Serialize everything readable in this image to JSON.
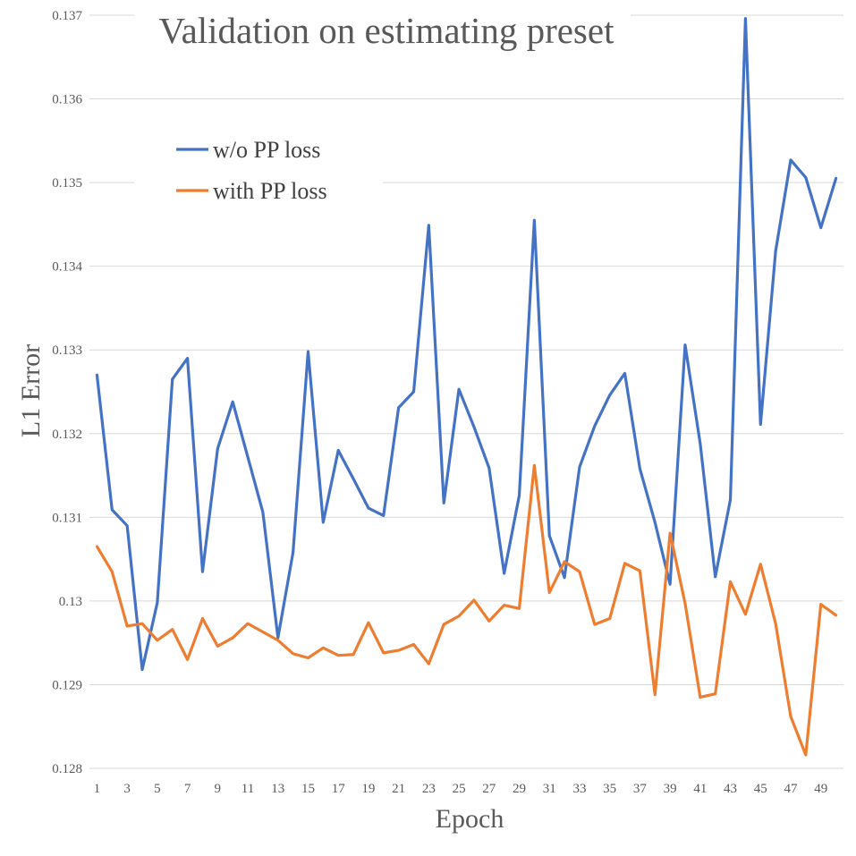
{
  "chart_data": {
    "type": "line",
    "title": "Validation on estimating preset",
    "xlabel": "Epoch",
    "ylabel": "L1 Error",
    "ylim": [
      0.128,
      0.137
    ],
    "yticks": [
      "0.128",
      "0.129",
      "0.13",
      "0.131",
      "0.132",
      "0.133",
      "0.134",
      "0.135",
      "0.136",
      "0.137"
    ],
    "x": [
      1,
      2,
      3,
      4,
      5,
      6,
      7,
      8,
      9,
      10,
      11,
      12,
      13,
      14,
      15,
      16,
      17,
      18,
      19,
      20,
      21,
      22,
      23,
      24,
      25,
      26,
      27,
      28,
      29,
      30,
      31,
      32,
      33,
      34,
      35,
      36,
      37,
      38,
      39,
      40,
      41,
      42,
      43,
      44,
      45,
      46,
      47,
      48,
      49,
      50
    ],
    "xtick_labels": [
      "1",
      "3",
      "5",
      "7",
      "9",
      "11",
      "13",
      "15",
      "17",
      "19",
      "21",
      "23",
      "25",
      "27",
      "29",
      "31",
      "33",
      "35",
      "37",
      "39",
      "41",
      "43",
      "45",
      "47",
      "49"
    ],
    "grid": true,
    "legend_position": "top-left",
    "series": [
      {
        "name": "w/o PP loss",
        "color": "#4472c4",
        "values": [
          0.1327,
          0.13109,
          0.1309,
          0.12918,
          0.12998,
          0.13265,
          0.1329,
          0.13035,
          0.13182,
          0.13238,
          0.13172,
          0.13106,
          0.12956,
          0.13058,
          0.13298,
          0.13094,
          0.1318,
          0.13146,
          0.13111,
          0.13102,
          0.13231,
          0.1325,
          0.13449,
          0.13117,
          0.13253,
          0.13208,
          0.13159,
          0.13033,
          0.13126,
          0.13455,
          0.13078,
          0.13028,
          0.1316,
          0.13209,
          0.13246,
          0.13272,
          0.13158,
          0.13094,
          0.1302,
          0.13306,
          0.13188,
          0.13029,
          0.13121,
          0.13696,
          0.13211,
          0.13418,
          0.13527,
          0.13506,
          0.13446,
          0.13505
        ]
      },
      {
        "name": "with PP loss",
        "color": "#ed7d31",
        "values": [
          0.13065,
          0.13035,
          0.1297,
          0.12973,
          0.12953,
          0.12966,
          0.1293,
          0.12979,
          0.12946,
          0.12956,
          0.12973,
          0.12963,
          0.12953,
          0.12937,
          0.12932,
          0.12944,
          0.12935,
          0.12936,
          0.12974,
          0.12938,
          0.12941,
          0.12948,
          0.12925,
          0.12972,
          0.12982,
          0.13001,
          0.12976,
          0.12995,
          0.12991,
          0.13162,
          0.1301,
          0.13047,
          0.13035,
          0.12972,
          0.12979,
          0.13045,
          0.13036,
          0.12888,
          0.13081,
          0.12997,
          0.12885,
          0.12889,
          0.13023,
          0.12984,
          0.13044,
          0.12973,
          0.12862,
          0.12816,
          0.12996,
          0.12983
        ]
      }
    ]
  }
}
